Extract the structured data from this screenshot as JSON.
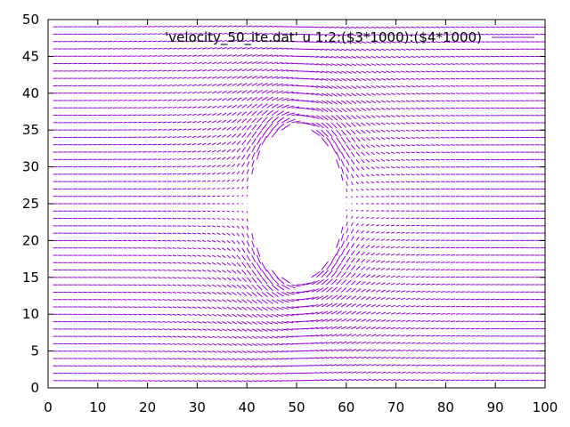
{
  "chart_data": {
    "type": "vector-field",
    "title": "",
    "xlabel": "",
    "ylabel": "",
    "xlim": [
      0,
      100
    ],
    "ylim": [
      0,
      50
    ],
    "xticks": [
      0,
      10,
      20,
      30,
      40,
      50,
      60,
      70,
      80,
      90,
      100
    ],
    "yticks": [
      0,
      5,
      10,
      15,
      20,
      25,
      30,
      35,
      40,
      45,
      50
    ],
    "grid": false,
    "legend_position": "top-right",
    "series": [
      {
        "name": "'velocity_50_ite.dat' u 1:2:($3*1000):($4*1000)",
        "color": "#9400d3",
        "grid_step": 1,
        "obstacle": {
          "shape": "ellipse",
          "center": [
            50,
            25
          ],
          "radius_x": 9.5,
          "radius_y": 10.5
        }
      }
    ]
  }
}
